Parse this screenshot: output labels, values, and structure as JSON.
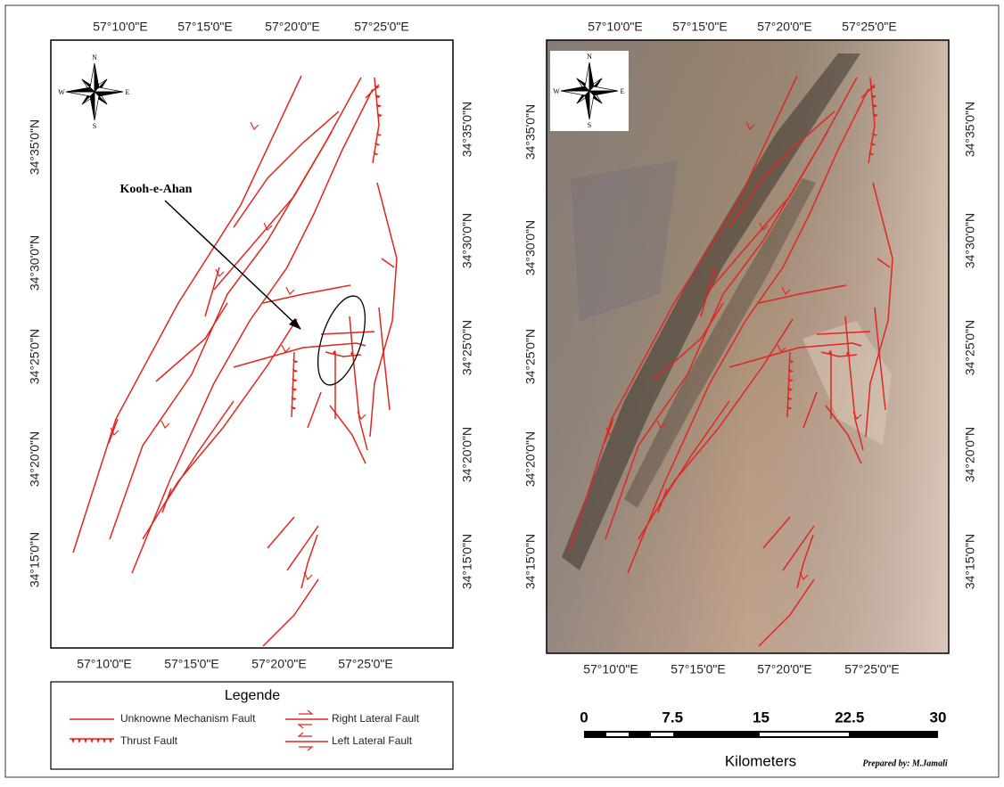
{
  "left_map": {
    "top_labels": [
      "57°10'0\"E",
      "57°15'0\"E",
      "57°20'0\"E",
      "57°25'0\"E"
    ],
    "bottom_labels": [
      "57°10'0\"E",
      "57°15'0\"E",
      "57°20'0\"E",
      "57°25'0\"E"
    ],
    "left_labels": [
      "34°35'0\"N",
      "34°30'0\"N",
      "34°25'0\"N",
      "34°20'0\"N",
      "34°15'0\"N"
    ],
    "right_labels": [
      "34°35'0\"N",
      "34°30'0\"N",
      "34°25'0\"N",
      "34°20'0\"N",
      "34°15'0\"N"
    ],
    "annotation": "Kooh-e-Ahan"
  },
  "right_map": {
    "top_labels": [
      "57°10'0\"E",
      "57°15'0\"E",
      "57°20'0\"E",
      "57°25'0\"E"
    ],
    "bottom_labels": [
      "57°10'0\"E",
      "57°15'0\"E",
      "57°20'0\"E",
      "57°25'0\"E"
    ],
    "left_labels": [
      "34°35'0\"N",
      "34°30'0\"N",
      "34°25'0\"N",
      "34°20'0\"N",
      "34°15'0\"N"
    ],
    "right_labels": [
      "34°35'0\"N",
      "34°30'0\"N",
      "34°25'0\"N",
      "34°20'0\"N",
      "34°15'0\"N"
    ]
  },
  "compass": {
    "n": "N",
    "s": "S",
    "e": "E",
    "w": "W"
  },
  "legend": {
    "title": "Legende",
    "items": [
      "Unknowne Mechanism Fault",
      "Thrust Fault",
      "Right Lateral Fault",
      "Left Lateral Fault"
    ]
  },
  "scale_bar": {
    "labels": [
      "0",
      "7.5",
      "15",
      "22.5",
      "30"
    ],
    "unit": "Kilometers"
  },
  "credit": "Prepared by: M.Jamali"
}
